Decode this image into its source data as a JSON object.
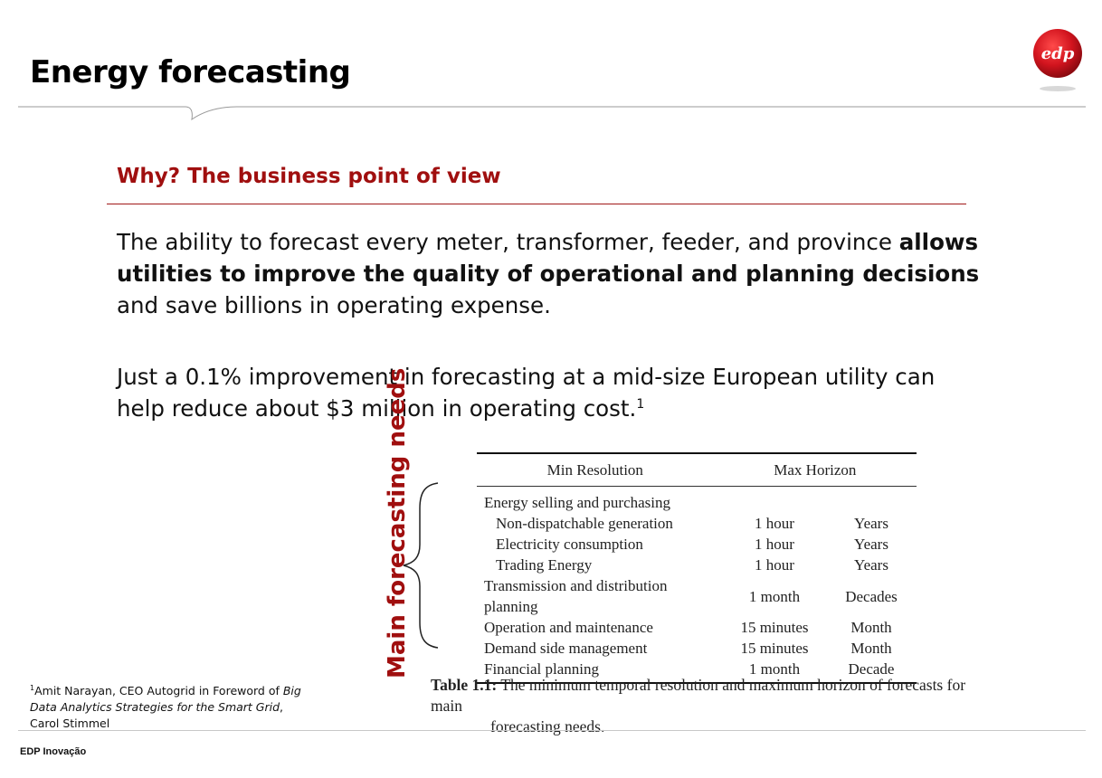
{
  "header": {
    "title": "Energy forecasting",
    "logo_text": "edp",
    "brand_color": "#d2141e"
  },
  "section": {
    "title": "Why? The business point of view",
    "p1_a": "The ability to forecast every meter, transformer, feeder, and province ",
    "p1_bold": "allows utilities to improve the quality of operational and planning decisions",
    "p1_b": " and save billions in operating expense.",
    "p2": "Just a 0.1% improvement in forecasting at a mid-size European utility can help reduce about $3 million in operating cost.",
    "p2_sup": "1"
  },
  "vertical_label": "Main forecasting needs",
  "table": {
    "headers": [
      "",
      "Min Resolution",
      "Max Horizon"
    ],
    "rows": [
      {
        "label": "Energy selling and purchasing",
        "min": "",
        "max": ""
      },
      {
        "label": "Non-dispatchable generation",
        "min": "1 hour",
        "max": "Years"
      },
      {
        "label": "Electricity consumption",
        "min": "1 hour",
        "max": "Years"
      },
      {
        "label": "Trading Energy",
        "min": "1 hour",
        "max": "Years"
      },
      {
        "label": "Transmission and distribution planning",
        "min": "1 month",
        "max": "Decades"
      },
      {
        "label": "Operation and maintenance",
        "min": "15 minutes",
        "max": "Month"
      },
      {
        "label": "Demand side management",
        "min": "15 minutes",
        "max": "Month"
      },
      {
        "label": "Financial planning",
        "min": "1 month",
        "max": "Decade"
      }
    ],
    "caption_label": "Table 1.1:",
    "caption_text": " The minimum temporal resolution and maximum horizon of forecasts for main",
    "caption_cont": "forecasting needs."
  },
  "footnote": {
    "sup": "1",
    "text_a": "Amit Narayan, CEO Autogrid in Foreword of ",
    "text_italic": "Big Data Analytics Strategies for the Smart Grid",
    "text_b": ", Carol Stimmel"
  },
  "footer": {
    "label": "EDP Inovação"
  }
}
